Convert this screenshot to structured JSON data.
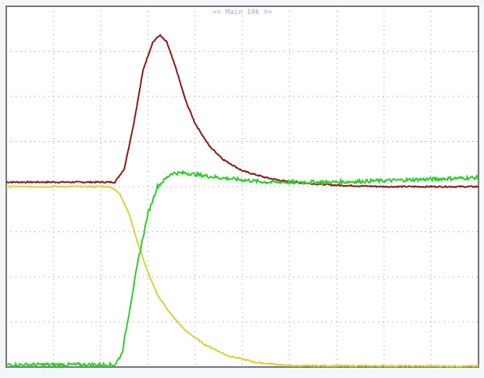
{
  "header": {
    "timebase_label": "<< Main 10k >>"
  },
  "chart_data": {
    "type": "line",
    "title": "",
    "xlabel": "",
    "ylabel": "",
    "xlim": [
      0,
      10
    ],
    "ylim": [
      0,
      8
    ],
    "grid": true,
    "x_divisions": 10,
    "y_divisions": 8,
    "series": [
      {
        "color": "#8b1a1a",
        "points": [
          [
            0,
            4.1
          ],
          [
            2.3,
            4.1
          ],
          [
            2.5,
            4.4
          ],
          [
            2.7,
            5.4
          ],
          [
            2.9,
            6.6
          ],
          [
            3.1,
            7.2
          ],
          [
            3.25,
            7.36
          ],
          [
            3.4,
            7.2
          ],
          [
            3.6,
            6.6
          ],
          [
            3.8,
            5.9
          ],
          [
            4.0,
            5.4
          ],
          [
            4.3,
            4.9
          ],
          [
            4.6,
            4.6
          ],
          [
            5.0,
            4.35
          ],
          [
            5.5,
            4.2
          ],
          [
            6.0,
            4.1
          ],
          [
            7,
            4.03
          ],
          [
            8,
            4.0
          ],
          [
            10,
            4.0
          ]
        ]
      },
      {
        "color": "#d4d43a",
        "points": [
          [
            0,
            4.0
          ],
          [
            2.2,
            4.0
          ],
          [
            2.4,
            3.85
          ],
          [
            2.6,
            3.4
          ],
          [
            2.8,
            2.7
          ],
          [
            3.0,
            2.1
          ],
          [
            3.2,
            1.6
          ],
          [
            3.5,
            1.15
          ],
          [
            3.8,
            0.8
          ],
          [
            4.2,
            0.5
          ],
          [
            4.7,
            0.25
          ],
          [
            5.3,
            0.1
          ],
          [
            6,
            0.03
          ],
          [
            10,
            0.02
          ]
        ]
      },
      {
        "color": "#2ecc2e",
        "points": [
          [
            0,
            0.05
          ],
          [
            2.3,
            0.05
          ],
          [
            2.45,
            0.3
          ],
          [
            2.6,
            1.2
          ],
          [
            2.8,
            2.4
          ],
          [
            3.0,
            3.4
          ],
          [
            3.2,
            4.0
          ],
          [
            3.5,
            4.3
          ],
          [
            3.8,
            4.3
          ],
          [
            4.5,
            4.2
          ],
          [
            5.5,
            4.1
          ],
          [
            7,
            4.1
          ],
          [
            10,
            4.2
          ]
        ]
      }
    ]
  }
}
